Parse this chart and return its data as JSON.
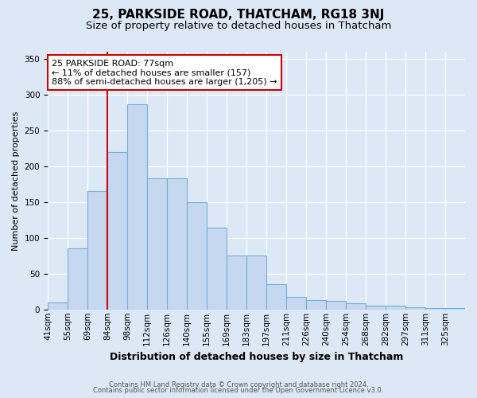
{
  "title": "25, PARKSIDE ROAD, THATCHAM, RG18 3NJ",
  "subtitle": "Size of property relative to detached houses in Thatcham",
  "xlabel": "Distribution of detached houses by size in Thatcham",
  "ylabel": "Number of detached properties",
  "categories": [
    "41sqm",
    "55sqm",
    "69sqm",
    "84sqm",
    "98sqm",
    "112sqm",
    "126sqm",
    "140sqm",
    "155sqm",
    "169sqm",
    "183sqm",
    "197sqm",
    "211sqm",
    "226sqm",
    "240sqm",
    "254sqm",
    "268sqm",
    "282sqm",
    "297sqm",
    "311sqm",
    "325sqm"
  ],
  "values": [
    10,
    85,
    165,
    220,
    287,
    183,
    183,
    150,
    114,
    75,
    75,
    35,
    18,
    13,
    12,
    9,
    5,
    5,
    3,
    2,
    2
  ],
  "bar_color": "#c5d8f0",
  "bar_edge_color": "#7aadd4",
  "vline_color": "#cc0000",
  "vline_x": 3,
  "annotation_text": "25 PARKSIDE ROAD: 77sqm\n← 11% of detached houses are smaller (157)\n88% of semi-detached houses are larger (1,205) →",
  "annotation_box_color": "white",
  "annotation_box_edge": "#cc0000",
  "footer1": "Contains HM Land Registry data © Crown copyright and database right 2024.",
  "footer2": "Contains public sector information licensed under the Open Government Licence v3.0.",
  "bg_color": "#dce8f5",
  "yticks": [
    0,
    50,
    100,
    150,
    200,
    250,
    300,
    350
  ],
  "ylim": [
    0,
    360
  ],
  "title_fontsize": 11,
  "subtitle_fontsize": 9.5,
  "xlabel_fontsize": 9,
  "ylabel_fontsize": 8,
  "tick_fontsize": 7.5,
  "annotation_fontsize": 8
}
